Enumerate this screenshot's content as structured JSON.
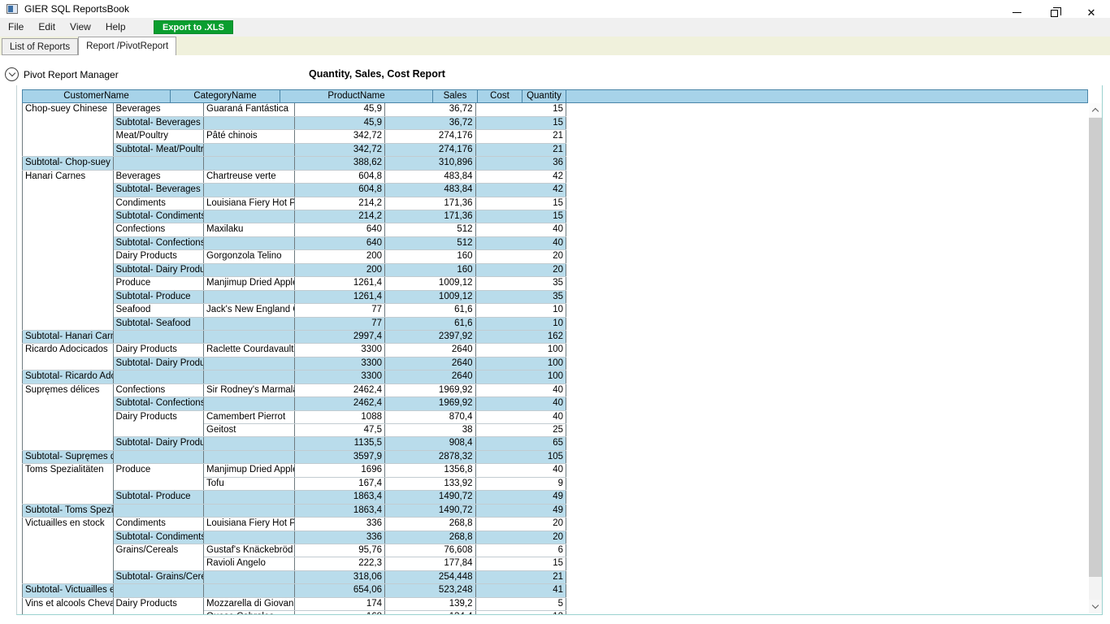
{
  "window": {
    "title": "GIER SQL ReportsBook"
  },
  "menu": {
    "items": [
      "File",
      "Edit",
      "View",
      "Help"
    ],
    "export_button": "Export to .XLS"
  },
  "tabs": [
    {
      "label": "List of Reports",
      "active": false
    },
    {
      "label": "Report /PivotReport",
      "active": true
    }
  ],
  "pivot_manager": {
    "label": "Pivot Report Manager"
  },
  "report": {
    "title": "Quantity, Sales, Cost Report"
  },
  "icons": {
    "close": "✕",
    "expander": "chevron-down",
    "scroll_up": "chevron-up",
    "scroll_down": "chevron-down"
  },
  "colors": {
    "export_green": "#0a9e2f",
    "header_blue": "#a7d3e9",
    "subtotal_blue": "#b9dceb",
    "tabstrip_yellow": "#f0f1dc"
  },
  "table": {
    "columns": [
      "CustomerName",
      "CategoryName",
      "ProductName",
      "Sales",
      "Cost",
      "Quantity"
    ],
    "rows": [
      {
        "type": "data",
        "customer": "Chop-suey Chinese",
        "customerSpan": 4,
        "category": "Beverages",
        "product": "Guaraná Fantástica",
        "sales": "45,9",
        "cost": "36,72",
        "qty": "15"
      },
      {
        "type": "subcat",
        "category": "Subtotal- Beverages",
        "product": "",
        "sales": "45,9",
        "cost": "36,72",
        "qty": "15"
      },
      {
        "type": "data",
        "category": "Meat/Poultry",
        "product": "Pâté chinois",
        "sales": "342,72",
        "cost": "274,176",
        "qty": "21"
      },
      {
        "type": "subcat",
        "category": "Subtotal- Meat/Poultry",
        "product": "",
        "sales": "342,72",
        "cost": "274,176",
        "qty": "21"
      },
      {
        "type": "subcust",
        "customer": "Subtotal- Chop-suey Chinese",
        "category": "",
        "product": "",
        "sales": "388,62",
        "cost": "310,896",
        "qty": "36"
      },
      {
        "type": "data",
        "customer": "Hanari Carnes",
        "customerSpan": 12,
        "category": "Beverages",
        "product": "Chartreuse verte",
        "sales": "604,8",
        "cost": "483,84",
        "qty": "42"
      },
      {
        "type": "subcat",
        "category": "Subtotal- Beverages",
        "product": "",
        "sales": "604,8",
        "cost": "483,84",
        "qty": "42"
      },
      {
        "type": "data",
        "category": "Condiments",
        "product": "Louisiana Fiery Hot Pepper Sauce",
        "sales": "214,2",
        "cost": "171,36",
        "qty": "15"
      },
      {
        "type": "subcat",
        "category": "Subtotal- Condiments",
        "product": "",
        "sales": "214,2",
        "cost": "171,36",
        "qty": "15"
      },
      {
        "type": "data",
        "category": "Confections",
        "product": "Maxilaku",
        "sales": "640",
        "cost": "512",
        "qty": "40"
      },
      {
        "type": "subcat",
        "category": "Subtotal- Confections",
        "product": "",
        "sales": "640",
        "cost": "512",
        "qty": "40"
      },
      {
        "type": "data",
        "category": "Dairy Products",
        "product": "Gorgonzola Telino",
        "sales": "200",
        "cost": "160",
        "qty": "20"
      },
      {
        "type": "subcat",
        "category": "Subtotal- Dairy Products",
        "product": "",
        "sales": "200",
        "cost": "160",
        "qty": "20"
      },
      {
        "type": "data",
        "category": "Produce",
        "product": "Manjimup Dried Apples",
        "sales": "1261,4",
        "cost": "1009,12",
        "qty": "35"
      },
      {
        "type": "subcat",
        "category": "Subtotal- Produce",
        "product": "",
        "sales": "1261,4",
        "cost": "1009,12",
        "qty": "35"
      },
      {
        "type": "data",
        "category": "Seafood",
        "product": "Jack's New England Clam Chowder",
        "sales": "77",
        "cost": "61,6",
        "qty": "10"
      },
      {
        "type": "subcat",
        "category": "Subtotal- Seafood",
        "product": "",
        "sales": "77",
        "cost": "61,6",
        "qty": "10"
      },
      {
        "type": "subcust",
        "customer": "Subtotal- Hanari Carnes",
        "category": "",
        "product": "",
        "sales": "2997,4",
        "cost": "2397,92",
        "qty": "162"
      },
      {
        "type": "data",
        "customer": "Ricardo Adocicados",
        "customerSpan": 2,
        "category": "Dairy Products",
        "product": "Raclette Courdavault",
        "sales": "3300",
        "cost": "2640",
        "qty": "100"
      },
      {
        "type": "subcat",
        "category": "Subtotal- Dairy Products",
        "product": "",
        "sales": "3300",
        "cost": "2640",
        "qty": "100"
      },
      {
        "type": "subcust",
        "customer": "Subtotal- Ricardo Adocicados",
        "category": "",
        "product": "",
        "sales": "3300",
        "cost": "2640",
        "qty": "100"
      },
      {
        "type": "data",
        "customer": "Supręmes délices",
        "customerSpan": 5,
        "category": "Confections",
        "product": "Sir Rodney's Marmalade",
        "sales": "2462,4",
        "cost": "1969,92",
        "qty": "40"
      },
      {
        "type": "subcat",
        "category": "Subtotal- Confections",
        "product": "",
        "sales": "2462,4",
        "cost": "1969,92",
        "qty": "40"
      },
      {
        "type": "data",
        "category": "Dairy Products",
        "categorySpan": 2,
        "product": "Camembert Pierrot",
        "sales": "1088",
        "cost": "870,4",
        "qty": "40"
      },
      {
        "type": "data",
        "product": "Geitost",
        "sales": "47,5",
        "cost": "38",
        "qty": "25"
      },
      {
        "type": "subcat",
        "category": "Subtotal- Dairy Products",
        "product": "",
        "sales": "1135,5",
        "cost": "908,4",
        "qty": "65"
      },
      {
        "type": "subcust",
        "customer": "Subtotal- Supręmes délices",
        "category": "",
        "product": "",
        "sales": "3597,9",
        "cost": "2878,32",
        "qty": "105"
      },
      {
        "type": "data",
        "customer": "Toms Spezialitäten",
        "customerSpan": 3,
        "category": "Produce",
        "categorySpan": 2,
        "product": "Manjimup Dried Apples",
        "sales": "1696",
        "cost": "1356,8",
        "qty": "40"
      },
      {
        "type": "data",
        "product": "Tofu",
        "sales": "167,4",
        "cost": "133,92",
        "qty": "9"
      },
      {
        "type": "subcat",
        "category": "Subtotal- Produce",
        "product": "",
        "sales": "1863,4",
        "cost": "1490,72",
        "qty": "49"
      },
      {
        "type": "subcust",
        "customer": "Subtotal- Toms Spezialitäten",
        "category": "",
        "product": "",
        "sales": "1863,4",
        "cost": "1490,72",
        "qty": "49"
      },
      {
        "type": "data",
        "customer": "Victuailles en stock",
        "customerSpan": 5,
        "category": "Condiments",
        "product": "Louisiana Fiery Hot Pepper Sauce",
        "sales": "336",
        "cost": "268,8",
        "qty": "20"
      },
      {
        "type": "subcat",
        "category": "Subtotal- Condiments",
        "product": "",
        "sales": "336",
        "cost": "268,8",
        "qty": "20"
      },
      {
        "type": "data",
        "category": "Grains/Cereals",
        "categorySpan": 2,
        "product": "Gustaf's Knäckebröd",
        "sales": "95,76",
        "cost": "76,608",
        "qty": "6"
      },
      {
        "type": "data",
        "product": "Ravioli Angelo",
        "sales": "222,3",
        "cost": "177,84",
        "qty": "15"
      },
      {
        "type": "subcat",
        "category": "Subtotal- Grains/Cereals",
        "product": "",
        "sales": "318,06",
        "cost": "254,448",
        "qty": "21"
      },
      {
        "type": "subcust",
        "customer": "Subtotal- Victuailles en stock",
        "category": "",
        "product": "",
        "sales": "654,06",
        "cost": "523,248",
        "qty": "41"
      },
      {
        "type": "data",
        "customer": "Vins et alcools Chevalier",
        "customerSpan": 2,
        "category": "Dairy Products",
        "categorySpan": 2,
        "product": "Mozzarella di Giovanni",
        "sales": "174",
        "cost": "139,2",
        "qty": "5"
      },
      {
        "type": "data",
        "product": "Queso Cabrales",
        "sales": "168",
        "cost": "134,4",
        "qty": "12"
      }
    ]
  }
}
